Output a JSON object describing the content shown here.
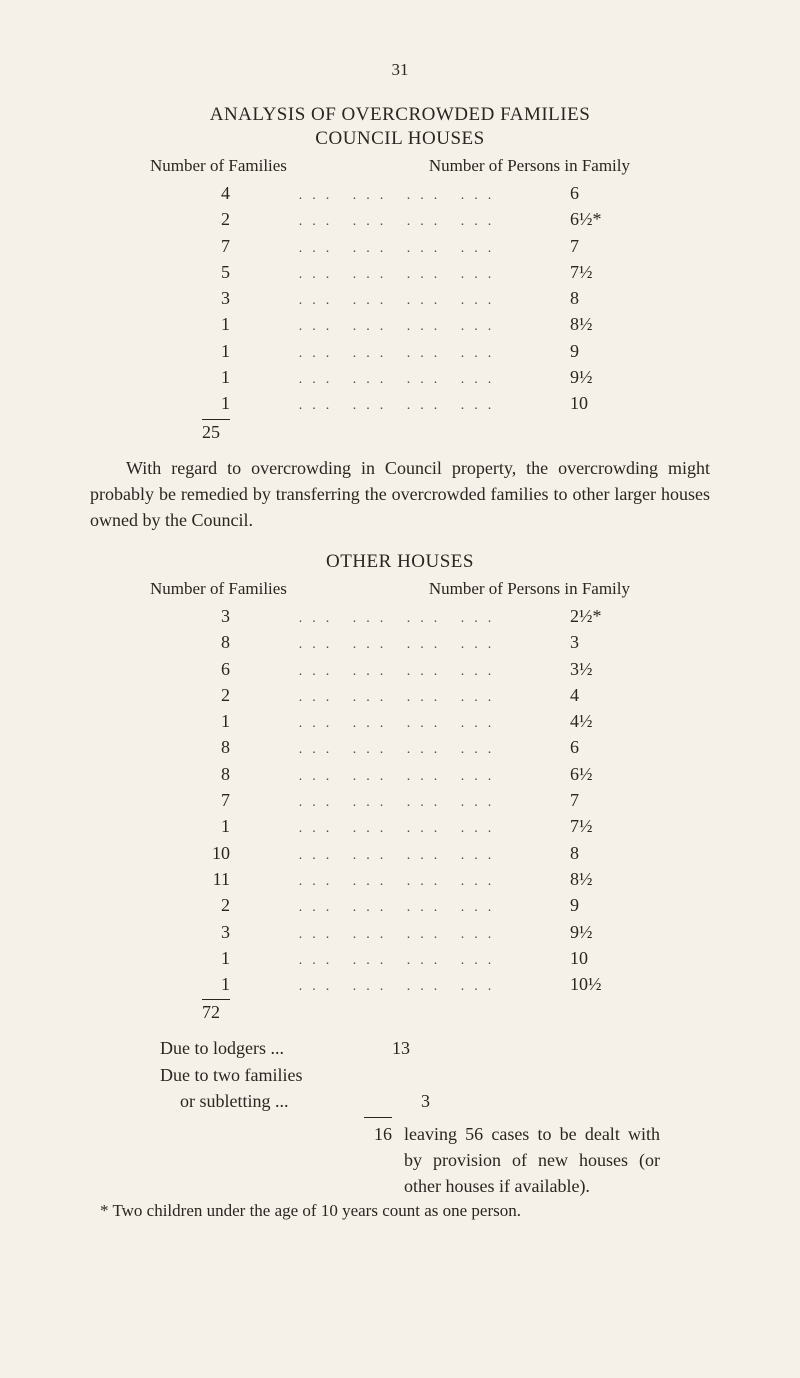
{
  "page_number": "31",
  "section1": {
    "title": "ANALYSIS OF OVERCROWDED FAMILIES",
    "subtitle": "COUNCIL HOUSES",
    "col_left": "Number of Families",
    "col_right": "Number of Persons in Family",
    "rows": [
      {
        "families": "4",
        "persons": "6"
      },
      {
        "families": "2",
        "persons": "6½*"
      },
      {
        "families": "7",
        "persons": "7"
      },
      {
        "families": "5",
        "persons": "7½"
      },
      {
        "families": "3",
        "persons": "8"
      },
      {
        "families": "1",
        "persons": "8½"
      },
      {
        "families": "1",
        "persons": "9"
      },
      {
        "families": "1",
        "persons": "9½"
      },
      {
        "families": "1",
        "persons": "10"
      }
    ],
    "total": "25"
  },
  "para1": "With regard to overcrowding in Council property, the over­crowding might probably be remedied by transferring the over­crowded families to other larger houses owned by the Council.",
  "section2": {
    "title": "OTHER HOUSES",
    "col_left": "Number of Families",
    "col_right": "Number of Persons in Family",
    "rows": [
      {
        "families": "3",
        "persons": "2½*"
      },
      {
        "families": "8",
        "persons": "3"
      },
      {
        "families": "6",
        "persons": "3½"
      },
      {
        "families": "2",
        "persons": "4"
      },
      {
        "families": "1",
        "persons": "4½"
      },
      {
        "families": "8",
        "persons": "6"
      },
      {
        "families": "8",
        "persons": "6½"
      },
      {
        "families": "7",
        "persons": "7"
      },
      {
        "families": "1",
        "persons": "7½"
      },
      {
        "families": "10",
        "persons": "8"
      },
      {
        "families": "11",
        "persons": "8½"
      },
      {
        "families": "2",
        "persons": "9"
      },
      {
        "families": "3",
        "persons": "9½"
      },
      {
        "families": "1",
        "persons": "10"
      },
      {
        "families": "1",
        "persons": "10½"
      }
    ],
    "total": "72"
  },
  "lodgers": {
    "line1": "Due to lodgers    ...",
    "num1": "13",
    "line2a": "Due to two families",
    "line2b": "or subletting    ...",
    "num2": "3",
    "final_num": "16",
    "final_text": "leaving 56 cases to be dealt with by provision of new houses (or other houses if available)."
  },
  "footnote": "* Two children under the age of 10 years count as one person.",
  "dots_str": "...   ...   ...   ..."
}
